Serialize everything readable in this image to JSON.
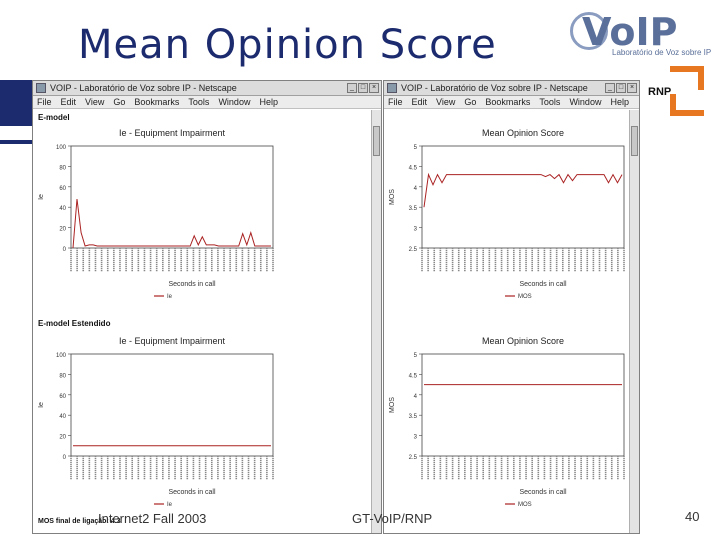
{
  "slide": {
    "title": "Mean Opinion Score",
    "footer_left": "Internet2 Fall 2003",
    "footer_mid": "GT-VoIP/RNP",
    "page_number": "40",
    "accent_color": "#1c2a6e"
  },
  "logos": {
    "voip_main": "VoIP",
    "voip_sub": "Laboratório de Voz sobre IP",
    "rnp": "RNP"
  },
  "windows": [
    {
      "title": "VOIP - Laboratório de Voz sobre IP - Netscape",
      "menu": [
        "File",
        "Edit",
        "View",
        "Go",
        "Bookmarks",
        "Tools",
        "Window",
        "Help"
      ],
      "section_top": "E-model",
      "section_bottom": "E-model Estendido",
      "bottom_note": "MOS final de ligação: 4.3"
    },
    {
      "title": "VOIP - Laboratório de Voz sobre IP - Netscape",
      "menu": [
        "File",
        "Edit",
        "View",
        "Go",
        "Bookmarks",
        "Tools",
        "Window",
        "Help"
      ]
    }
  ],
  "chart_data": [
    {
      "type": "line",
      "title": "Ie - Equipment Impairment",
      "xlabel": "Seconds in call",
      "ylabel": "Ie",
      "y_ticks": [
        "100",
        "80",
        "60",
        "40",
        "20",
        "0"
      ],
      "ylim": [
        0,
        100
      ],
      "legend": "Ie",
      "color": "#aa2222",
      "series": [
        {
          "name": "Ie",
          "values": [
            0,
            48,
            15,
            2,
            3,
            3,
            2,
            2,
            2,
            2,
            2,
            2,
            2,
            2,
            2,
            2,
            2,
            2,
            2,
            2,
            2,
            2,
            2,
            2,
            2,
            2,
            2,
            2,
            2,
            2,
            12,
            3,
            11,
            3,
            3,
            3,
            2,
            2,
            2,
            2,
            2,
            2,
            14,
            3,
            15,
            2,
            2,
            2,
            2,
            2
          ]
        }
      ]
    },
    {
      "type": "line",
      "title": "Mean Opinion Score",
      "xlabel": "Seconds in call",
      "ylabel": "MOS",
      "y_ticks": [
        "5",
        "4.5",
        "4",
        "3.5",
        "3",
        "2.5"
      ],
      "ylim": [
        2.5,
        5
      ],
      "legend": "MOS",
      "color": "#aa2222",
      "series": [
        {
          "name": "MOS",
          "values": [
            3.5,
            4.3,
            4.05,
            4.3,
            4.1,
            4.3,
            4.3,
            4.3,
            4.3,
            4.3,
            4.3,
            4.3,
            4.3,
            4.3,
            4.3,
            4.3,
            4.3,
            4.3,
            4.3,
            4.3,
            4.3,
            4.3,
            4.3,
            4.3,
            4.3,
            4.3,
            4.3,
            4.25,
            4.3,
            4.2,
            4.3,
            4.1,
            4.3,
            4.15,
            4.3,
            4.3,
            4.3,
            4.3,
            4.3,
            4.3,
            4.3,
            4.1,
            4.3,
            4.1,
            4.3
          ]
        }
      ]
    },
    {
      "type": "line",
      "title": "Ie - Equipment Impairment",
      "xlabel": "Seconds in call",
      "ylabel": "Ie",
      "y_ticks": [
        "100",
        "80",
        "60",
        "40",
        "20",
        "0"
      ],
      "ylim": [
        0,
        100
      ],
      "legend": "Ie",
      "color": "#aa2222",
      "series": [
        {
          "name": "Ie",
          "values": [
            10,
            10,
            10,
            10,
            10,
            10,
            10,
            10,
            10,
            10,
            10,
            10,
            10,
            10,
            10,
            10,
            10,
            10,
            10,
            10,
            10,
            10,
            10,
            10,
            10,
            10,
            10,
            10,
            10,
            10
          ]
        }
      ]
    },
    {
      "type": "line",
      "title": "Mean Opinion Score",
      "xlabel": "Seconds in call",
      "ylabel": "MOS",
      "y_ticks": [
        "5",
        "4.5",
        "4",
        "3.5",
        "3",
        "2.5"
      ],
      "ylim": [
        2.5,
        5
      ],
      "legend": "MOS",
      "color": "#aa2222",
      "series": [
        {
          "name": "MOS",
          "values": [
            4.25,
            4.25,
            4.25,
            4.25,
            4.25,
            4.25,
            4.25,
            4.25,
            4.25,
            4.25,
            4.25,
            4.25,
            4.25,
            4.25,
            4.25,
            4.25,
            4.25,
            4.25,
            4.25,
            4.25,
            4.25,
            4.25,
            4.25,
            4.25,
            4.25,
            4.25,
            4.25,
            4.25,
            4.25,
            4.25
          ]
        }
      ]
    }
  ]
}
